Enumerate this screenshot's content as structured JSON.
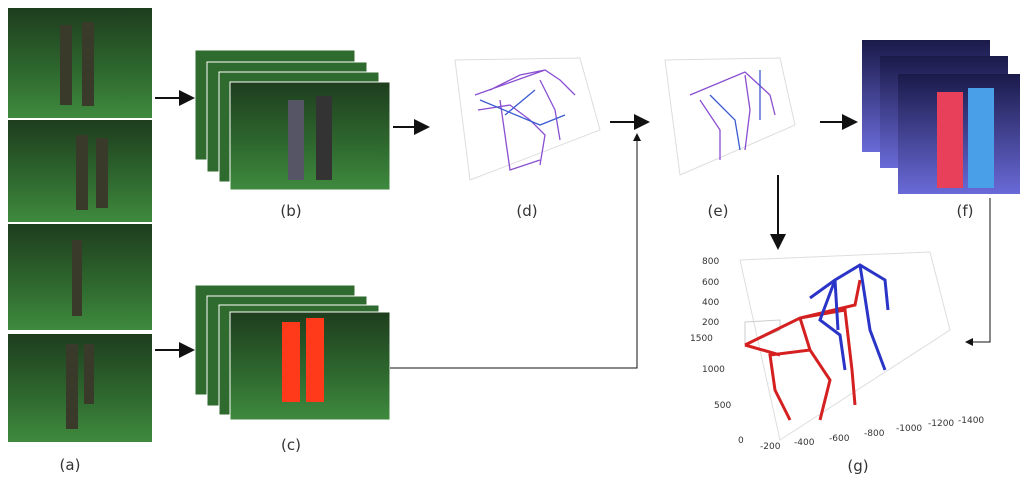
{
  "panels": {
    "a": {
      "label": "(a)"
    },
    "b": {
      "label": "(b)"
    },
    "c": {
      "label": "(c)"
    },
    "d": {
      "label": "(d)"
    },
    "e": {
      "label": "(e)"
    },
    "f": {
      "label": "(f)"
    },
    "g": {
      "label": "(g)",
      "z_ticks": [
        "800",
        "600",
        "400",
        "200"
      ],
      "y_ticks": [
        "1500",
        "1000",
        "500",
        "0"
      ],
      "x_ticks": [
        "-200",
        "-400",
        "-600",
        "-800",
        "-1000",
        "-1200",
        "-1400"
      ]
    }
  }
}
